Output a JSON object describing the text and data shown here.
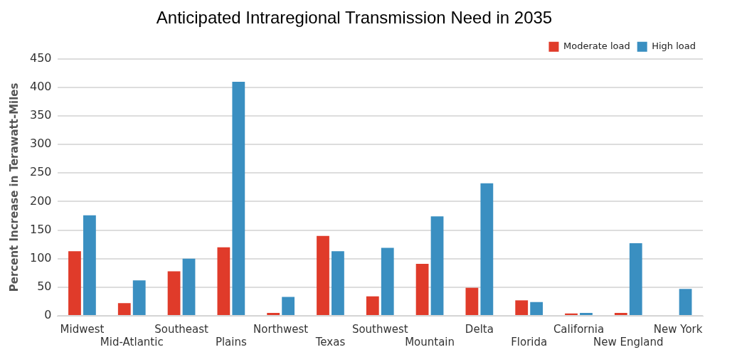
{
  "chart_data": {
    "type": "bar",
    "title": "Anticipated Intraregional Transmission Need in 2035",
    "ylabel": "Percent Increase in Terawatt-Miles",
    "categories": [
      "Midwest",
      "Mid-Atlantic",
      "Southeast",
      "Plains",
      "Northwest",
      "Texas",
      "Southwest",
      "Mountain",
      "Delta",
      "Florida",
      "California",
      "New England",
      "New York"
    ],
    "series": [
      {
        "name": "Moderate load",
        "color": "#e03b2a",
        "values": [
          113,
          22,
          78,
          120,
          5,
          140,
          34,
          91,
          49,
          27,
          4,
          5,
          null
        ]
      },
      {
        "name": "High load",
        "color": "#3a8fc1",
        "values": [
          176,
          62,
          100,
          410,
          33,
          113,
          119,
          174,
          232,
          24,
          5,
          127,
          47
        ]
      }
    ],
    "ylim": [
      0,
      450
    ],
    "yticks": [
      0,
      50,
      100,
      150,
      200,
      250,
      300,
      350,
      400,
      450
    ],
    "grid": "y",
    "legend": "top right"
  }
}
